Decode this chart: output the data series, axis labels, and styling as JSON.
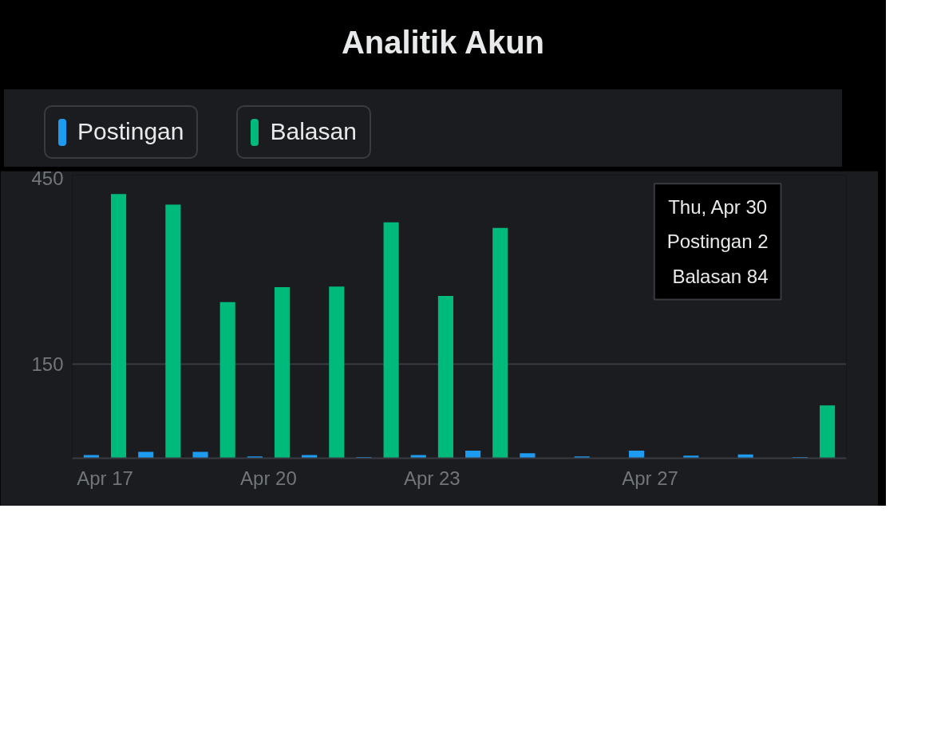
{
  "chart_data": {
    "type": "bar",
    "title": "Analitik Akun",
    "categories": [
      "Apr 17",
      null,
      null,
      "Apr 20",
      null,
      null,
      "Apr 23",
      null,
      null,
      null,
      "Apr 27",
      null,
      null,
      null
    ],
    "series": [
      {
        "name": "Postingan",
        "color": "#1d9bf0",
        "values": [
          5,
          10,
          10,
          3,
          5,
          2,
          5,
          12,
          8,
          3,
          12,
          4,
          6,
          2
        ]
      },
      {
        "name": "Balasan",
        "color": "#00ba7c",
        "values": [
          420,
          403,
          248,
          272,
          273,
          375,
          258,
          366,
          null,
          null,
          null,
          null,
          null,
          84
        ]
      }
    ],
    "ylim": [
      0,
      450
    ],
    "yticks": [
      150,
      450
    ],
    "grid": "y",
    "legend": "top left",
    "annotations": [
      "Thu, Apr 30",
      "Postingan 2",
      "Balasan 84"
    ]
  }
}
